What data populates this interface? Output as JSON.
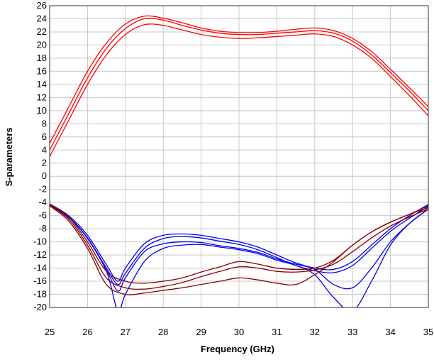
{
  "chart_data": {
    "type": "line",
    "xlabel": "Frequency (GHz)",
    "ylabel": "S-parameters",
    "xlim": [
      25,
      35
    ],
    "ylim": [
      -20,
      26
    ],
    "xticks": [
      25,
      26,
      27,
      28,
      29,
      30,
      31,
      32,
      33,
      34,
      35
    ],
    "yticks": [
      26,
      24,
      22,
      20,
      18,
      16,
      14,
      12,
      10,
      8,
      6,
      4,
      2,
      0,
      -2,
      -4,
      -6,
      -8,
      -10,
      -12,
      -14,
      -16,
      -18,
      -20
    ],
    "grid": true,
    "legend": "none",
    "colors": {
      "s21": "#ff0000",
      "s11": "#0000ee",
      "s22": "#8b0000",
      "grid": "#c8c8c8"
    },
    "series": [
      {
        "group": "s21",
        "x": [
          25,
          25.5,
          26,
          26.5,
          27,
          27.5,
          28,
          28.5,
          29,
          29.5,
          30,
          30.5,
          31,
          31.5,
          32,
          32.5,
          33,
          33.5,
          34,
          34.5,
          35
        ],
        "values": [
          4,
          9.5,
          15,
          19.5,
          22.5,
          24,
          23.8,
          23,
          22.3,
          21.8,
          21.6,
          21.6,
          21.8,
          22,
          22.2,
          21.8,
          20.6,
          18.5,
          15.8,
          13,
          10
        ]
      },
      {
        "group": "s21",
        "x": [
          25,
          25.5,
          26,
          26.5,
          27,
          27.5,
          28,
          28.5,
          29,
          29.5,
          30,
          30.5,
          31,
          31.5,
          32,
          32.5,
          33,
          33.5,
          34,
          34.5,
          35
        ],
        "values": [
          3,
          8.5,
          14,
          18.5,
          21.6,
          23.1,
          23,
          22.3,
          21.6,
          21.2,
          21,
          21.1,
          21.3,
          21.5,
          21.7,
          21.3,
          20,
          18,
          15.2,
          12.3,
          9.2
        ]
      },
      {
        "group": "s21",
        "x": [
          25,
          25.5,
          26,
          26.5,
          27,
          27.5,
          28,
          28.5,
          29,
          29.5,
          30,
          30.5,
          31,
          31.5,
          32,
          32.5,
          33,
          33.5,
          34,
          34.5,
          35
        ],
        "values": [
          5,
          10.5,
          16,
          20.3,
          23.2,
          24.4,
          24.1,
          23.4,
          22.6,
          22.1,
          21.9,
          21.9,
          22.1,
          22.4,
          22.6,
          22.2,
          21,
          19,
          16.3,
          13.5,
          10.6
        ]
      },
      {
        "group": "s11",
        "x": [
          25,
          25.5,
          26,
          26.5,
          26.8,
          27,
          27.5,
          28,
          28.5,
          29,
          29.5,
          30,
          30.5,
          31,
          31.5,
          32,
          32.5,
          33,
          33.5,
          34,
          34.5,
          35
        ],
        "values": [
          -4.2,
          -6,
          -9,
          -13.5,
          -16,
          -14,
          -10.3,
          -9,
          -8.8,
          -9,
          -9.5,
          -10,
          -10.8,
          -12,
          -13.2,
          -14,
          -14.2,
          -13,
          -10.5,
          -8,
          -6,
          -4.3
        ]
      },
      {
        "group": "s11",
        "x": [
          25,
          25.5,
          26,
          26.5,
          26.8,
          27,
          27.5,
          28,
          28.5,
          29,
          29.5,
          30,
          30.5,
          31,
          31.5,
          32,
          32.5,
          33,
          33.5,
          34,
          34.5,
          35
        ],
        "values": [
          -4.5,
          -6.3,
          -9.4,
          -14,
          -16.5,
          -14.8,
          -11,
          -9.5,
          -9.2,
          -9.4,
          -9.9,
          -10.4,
          -11.2,
          -12.4,
          -13.6,
          -14.4,
          -14.7,
          -13.6,
          -11,
          -8.4,
          -6.4,
          -4.6
        ]
      },
      {
        "group": "s11",
        "x": [
          25,
          25.5,
          26,
          26.5,
          26.8,
          27,
          27.5,
          28,
          28.5,
          29,
          29.5,
          30,
          30.5,
          31,
          31.5,
          32,
          32.5,
          33,
          33.5,
          34,
          34.5,
          35
        ],
        "values": [
          -4.3,
          -6.2,
          -9.5,
          -14.5,
          -20.5,
          -18,
          -13,
          -11,
          -10.5,
          -10.4,
          -10.8,
          -11.2,
          -11.8,
          -12.8,
          -13.6,
          -15,
          -18.5,
          -20.5,
          -16,
          -10.5,
          -7.2,
          -5
        ]
      },
      {
        "group": "s11",
        "x": [
          25,
          25.5,
          26,
          26.5,
          26.8,
          27,
          27.5,
          28,
          28.5,
          29,
          29.5,
          30,
          30.5,
          31,
          31.5,
          32,
          32.5,
          33,
          33.5,
          34,
          34.5,
          35
        ],
        "values": [
          -4.4,
          -6.2,
          -9.4,
          -14.3,
          -17.5,
          -15.5,
          -11.5,
          -10.3,
          -10,
          -10.1,
          -10.6,
          -11,
          -11.6,
          -12.6,
          -13.4,
          -14.2,
          -16.5,
          -17,
          -14,
          -10,
          -7.2,
          -5
        ]
      },
      {
        "group": "s22",
        "x": [
          25,
          25.5,
          26,
          26.5,
          27,
          27.5,
          28,
          28.5,
          29,
          29.5,
          30,
          30.5,
          31,
          31.5,
          32,
          32.5,
          33,
          33.5,
          34,
          34.5,
          35
        ],
        "values": [
          -4.2,
          -6.2,
          -10,
          -14.5,
          -16,
          -16.3,
          -16,
          -15.5,
          -14.6,
          -13.8,
          -13,
          -13.4,
          -14,
          -14.2,
          -14,
          -12.8,
          -10.5,
          -8.5,
          -7,
          -5.8,
          -4.5
        ]
      },
      {
        "group": "s22",
        "x": [
          25,
          25.5,
          26,
          26.5,
          27,
          27.5,
          28,
          28.5,
          29,
          29.5,
          30,
          30.5,
          31,
          31.5,
          32,
          32.5,
          33,
          33.5,
          34,
          34.5,
          35
        ],
        "values": [
          -4.4,
          -6.5,
          -10.5,
          -15.5,
          -17,
          -17.2,
          -16.8,
          -16.2,
          -15.3,
          -14.5,
          -13.8,
          -14,
          -14.5,
          -14.6,
          -14.3,
          -13.4,
          -11.5,
          -9.4,
          -7.6,
          -6.2,
          -5
        ]
      },
      {
        "group": "s22",
        "x": [
          25,
          25.5,
          26,
          26.5,
          27,
          27.5,
          28,
          28.5,
          29,
          29.5,
          30,
          30.5,
          31,
          31.5,
          32,
          32.5,
          33,
          33.5,
          34,
          34.5,
          35
        ],
        "values": [
          -4.5,
          -6.8,
          -11,
          -16.5,
          -18,
          -17.8,
          -17.4,
          -17,
          -16.5,
          -16,
          -15.5,
          -15.8,
          -16.3,
          -16.5,
          -15,
          -13,
          -10.5,
          -8.5,
          -7,
          -5.8,
          -4.8
        ]
      }
    ]
  }
}
